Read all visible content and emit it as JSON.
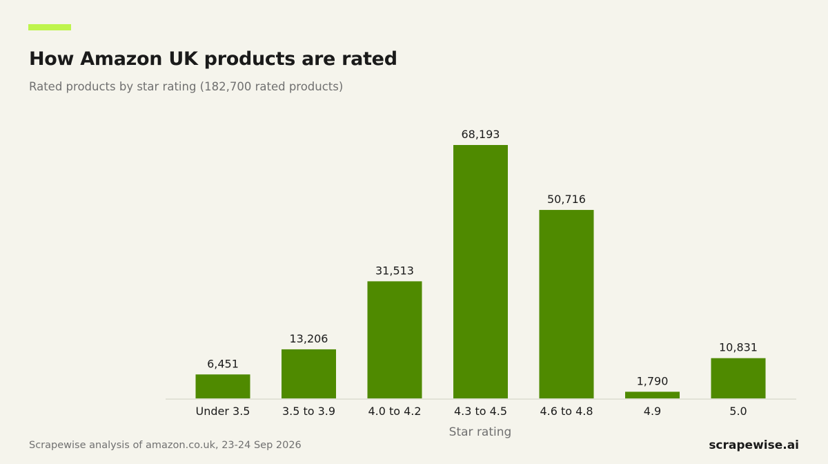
{
  "header": {
    "title": "How Amazon UK products are rated",
    "subtitle": "Rated products by star rating (182,700 rated products)"
  },
  "footer": {
    "source": "Scrapewise analysis of amazon.co.uk, 23-24 Sep 2026",
    "brand": "scrapewise.ai"
  },
  "colors": {
    "accent": "#bef44c",
    "bar": "#4f8a00",
    "background": "#f5f4ec"
  },
  "chart_data": {
    "type": "bar",
    "title": "How Amazon UK products are rated",
    "subtitle": "Rated products by star rating (182,700 rated products)",
    "xlabel": "Star rating",
    "ylabel": "",
    "categories": [
      "Under 3.5",
      "3.5 to 3.9",
      "4.0 to 4.2",
      "4.3 to 4.5",
      "4.6 to 4.8",
      "4.9",
      "5.0"
    ],
    "values": [
      6451,
      13206,
      31513,
      68193,
      50716,
      1790,
      10831
    ],
    "value_labels": [
      "6,451",
      "13,206",
      "31,513",
      "68,193",
      "50,716",
      "1,790",
      "10,831"
    ],
    "ylim": [
      0,
      68193
    ],
    "grid": false,
    "legend": "none"
  }
}
